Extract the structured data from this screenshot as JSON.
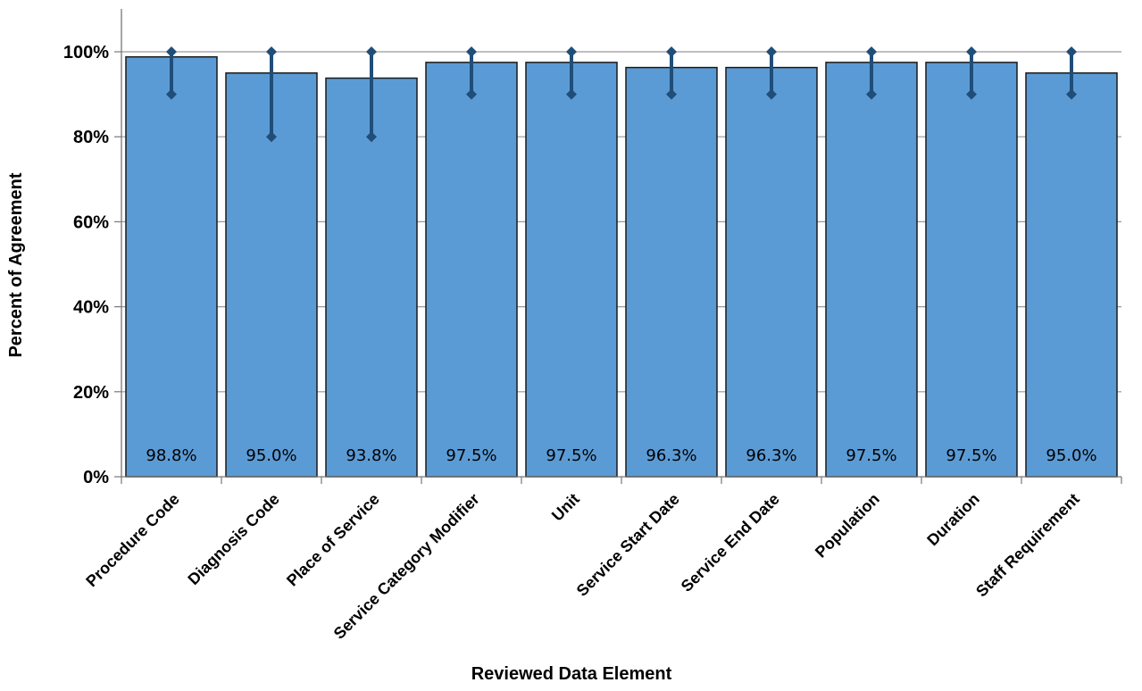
{
  "chart_data": {
    "type": "bar",
    "title": "",
    "xlabel": "Reviewed Data Element",
    "ylabel": "Percent of Agreement",
    "categories": [
      "Procedure Code",
      "Diagnosis Code",
      "Place of Service",
      "Service Category Modifier",
      "Unit",
      "Service Start Date",
      "Service End Date",
      "Population",
      "Duration",
      "Staff Requirement"
    ],
    "values": [
      98.8,
      95.0,
      93.8,
      97.5,
      97.5,
      96.3,
      96.3,
      97.5,
      97.5,
      95.0
    ],
    "data_labels": [
      "98.8%",
      "95.0%",
      "93.8%",
      "97.5%",
      "97.5%",
      "96.3%",
      "96.3%",
      "97.5%",
      "97.5%",
      "95.0%"
    ],
    "error_low": [
      90,
      80,
      80,
      90,
      90,
      90,
      90,
      90,
      90,
      90
    ],
    "error_high": [
      100,
      100,
      100,
      100,
      100,
      100,
      100,
      100,
      100,
      100
    ],
    "ylim": [
      0,
      100
    ],
    "yticks": [
      0,
      20,
      40,
      60,
      80,
      100
    ],
    "ytick_labels": [
      "0%",
      "20%",
      "40%",
      "60%",
      "80%",
      "100%"
    ],
    "grid": true,
    "legend": "none",
    "colors": {
      "bar": "#5b9bd5",
      "bar_border": "#1a1a1a",
      "error_bar": "#1f4e79",
      "grid": "#999999"
    }
  }
}
